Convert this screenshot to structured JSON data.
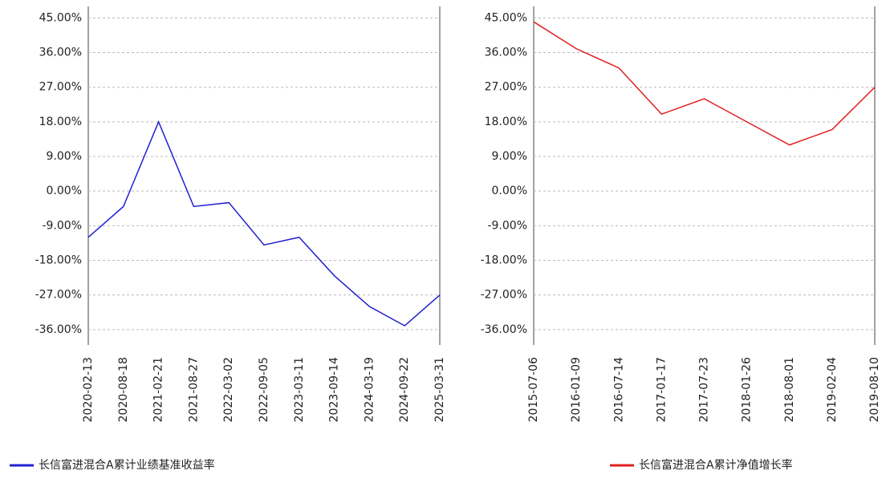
{
  "chart_data": [
    {
      "type": "line",
      "categories": [
        "2020-02-13",
        "2020-08-18",
        "2021-02-21",
        "2021-08-27",
        "2022-03-02",
        "2022-09-05",
        "2023-03-11",
        "2023-09-14",
        "2024-03-19",
        "2024-09-22",
        "2025-03-31"
      ],
      "series": [
        {
          "name": "长信富进混合A累计业绩基准收益率",
          "color": "#2020d0",
          "values": [
            -12,
            -4,
            18,
            -4,
            -3,
            -14,
            -12,
            -22,
            -30,
            -35,
            -27
          ]
        }
      ],
      "ylim": [
        -40,
        48
      ],
      "yticks": [
        {
          "value": 45,
          "label": "45.00%"
        },
        {
          "value": 36,
          "label": "36.00%"
        },
        {
          "value": 27,
          "label": "27.00%"
        },
        {
          "value": 18,
          "label": "18.00%"
        },
        {
          "value": 9,
          "label": "9.00%"
        },
        {
          "value": 0,
          "label": "0.00%"
        },
        {
          "value": -9,
          "label": "-9.00%"
        },
        {
          "value": -18,
          "label": "-18.00%"
        },
        {
          "value": -27,
          "label": "-27.00%"
        },
        {
          "value": -36,
          "label": "-36.00%"
        }
      ],
      "grid": true
    },
    {
      "type": "line",
      "categories": [
        "2015-07-06",
        "2016-01-09",
        "2016-07-14",
        "2017-01-17",
        "2017-07-23",
        "2018-01-26",
        "2018-08-01",
        "2019-02-04",
        "2019-08-10"
      ],
      "series": [
        {
          "name": "长信富进混合A累计净值增长率",
          "color": "#e02020",
          "values": [
            44,
            37,
            32,
            20,
            24,
            18,
            12,
            16,
            27
          ]
        }
      ],
      "ylim": [
        -40,
        48
      ],
      "yticks": [
        {
          "value": 45,
          "label": "45.00%"
        },
        {
          "value": 36,
          "label": "36.00%"
        },
        {
          "value": 27,
          "label": "27.00%"
        },
        {
          "value": 18,
          "label": "18.00%"
        },
        {
          "value": 9,
          "label": "9.00%"
        },
        {
          "value": 0,
          "label": "0.00%"
        },
        {
          "value": -9,
          "label": "-9.00%"
        },
        {
          "value": -18,
          "label": "-18.00%"
        },
        {
          "value": -27,
          "label": "-27.00%"
        },
        {
          "value": -36,
          "label": "-36.00%"
        }
      ],
      "grid": true
    }
  ]
}
